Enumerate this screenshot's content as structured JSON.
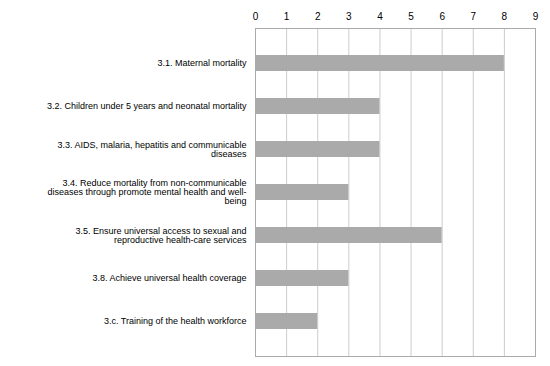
{
  "chart_data": {
    "type": "bar",
    "orientation": "horizontal",
    "categories": [
      "3.c. Training of the health workforce",
      "3.8. Achieve universal health coverage",
      "3.5. Ensure universal access to sexual and\nreproductive health-care services",
      "3.4. Reduce mortality from non-communicable\ndiseases through promote mental health and well-\nbeing",
      "3.3. AIDS, malaria, hepatitis and communicable\ndiseases",
      "3.2. Children under 5 years and neonatal mortality",
      "3.1. Maternal mortality"
    ],
    "values": [
      2,
      3,
      6,
      3,
      4,
      4,
      8
    ],
    "color": "#aaaaaa",
    "xlim": [
      0,
      9
    ],
    "xticks": [
      0,
      1,
      2,
      3,
      4,
      5,
      6,
      7,
      8,
      9
    ],
    "grid": true
  }
}
